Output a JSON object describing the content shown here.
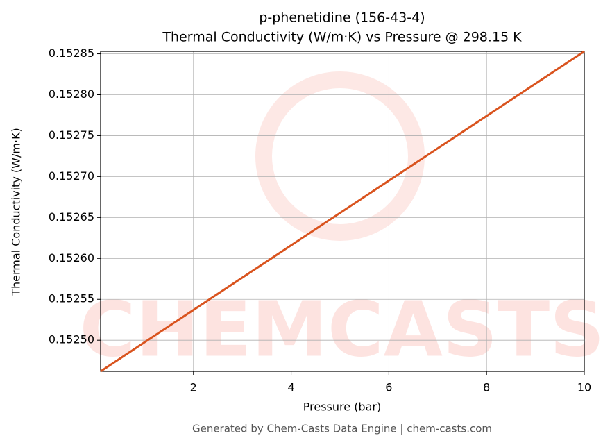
{
  "chart_data": {
    "type": "line",
    "title": "p-phenetidine (156-43-4)",
    "subtitle": "Thermal Conductivity (W/m·K) vs Pressure @ 298.15 K",
    "x_label": "Pressure (bar)",
    "y_label": "Thermal Conductivity (W/m·K)",
    "footer": "Generated by Chem-Casts Data Engine | chem-casts.com",
    "watermark": "CHEMCASTS",
    "x": [
      0.1,
      10
    ],
    "series": [
      {
        "name": "Thermal Conductivity",
        "color": "#d9531e",
        "values": [
          0.152462,
          0.152853
        ]
      }
    ],
    "xlim": [
      0.1,
      10
    ],
    "xticks": [
      2,
      4,
      6,
      8,
      10
    ],
    "ylim": [
      0.152462,
      0.152853
    ],
    "yticks": [
      {
        "value": 0.1525,
        "label": "0.15250"
      },
      0.15255,
      {
        "value": 0.1526,
        "label": "0.15260"
      },
      0.15265,
      {
        "value": 0.1527,
        "label": "0.15270"
      },
      0.15275,
      {
        "value": 0.1528,
        "label": "0.15280"
      },
      0.15285
    ],
    "grid": true
  }
}
